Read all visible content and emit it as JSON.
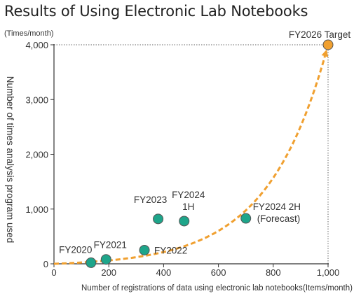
{
  "title": "Results of Using Electronic Lab Notebooks",
  "chart_data": {
    "type": "scatter",
    "title": "Results of Using Electronic Lab Notebooks",
    "xlabel": "Number of registrations of data using electronic lab notebooks",
    "xunit": "(Items/month)",
    "ylabel": "Number of times analysis program used",
    "yunit": "(Times/month)",
    "xlim": [
      0,
      1000
    ],
    "ylim": [
      0,
      4000
    ],
    "xticks": [
      "0",
      "200",
      "400",
      "600",
      "800",
      "1,000"
    ],
    "yticks": [
      "0",
      "1,000",
      "2,000",
      "3,000",
      "4,000"
    ],
    "xtick_values": [
      0,
      200,
      400,
      600,
      800,
      1000
    ],
    "ytick_values": [
      0,
      1000,
      2000,
      3000,
      4000
    ],
    "grid": false,
    "points": [
      {
        "label": "FY2020",
        "x": 135,
        "y": 20,
        "color": "#1ea58a"
      },
      {
        "label": "FY2021",
        "x": 190,
        "y": 80,
        "color": "#1ea58a"
      },
      {
        "label": "FY2022",
        "x": 330,
        "y": 250,
        "color": "#1ea58a"
      },
      {
        "label": "FY2023",
        "x": 380,
        "y": 820,
        "color": "#1ea58a"
      },
      {
        "label": "FY2024\n1H",
        "x": 475,
        "y": 780,
        "color": "#1ea58a"
      },
      {
        "label": "FY2024 2H\n(Forecast)",
        "x": 700,
        "y": 830,
        "color": "#1ea58a"
      },
      {
        "label": "FY2026 Target",
        "x": 1000,
        "y": 4000,
        "color": "#f0a030"
      }
    ],
    "trend": {
      "type": "exponential",
      "style": "dashed",
      "color": "#f0a030",
      "from": [
        0,
        0
      ],
      "to": [
        1000,
        4000
      ],
      "arrow": true
    },
    "target_guides": {
      "style": "dotted",
      "color": "#666666",
      "x": 1000,
      "y": 4000
    }
  }
}
